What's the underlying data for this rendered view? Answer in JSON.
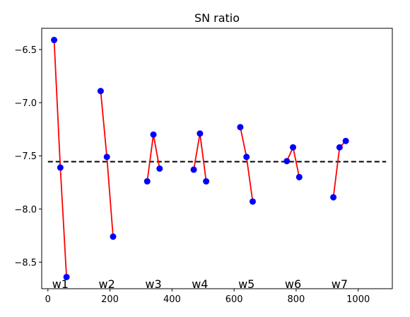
{
  "chart_data": {
    "type": "line",
    "title": "SN ratio",
    "xlabel": "",
    "ylabel": "",
    "xlim": [
      -20,
      1110
    ],
    "ylim": [
      -8.75,
      -6.3
    ],
    "x_ticks": [
      0,
      200,
      400,
      600,
      800,
      1000
    ],
    "y_ticks": [
      -6.5,
      -7.0,
      -7.5,
      -8.0,
      -8.5
    ],
    "y_tick_labels": [
      "−6.5",
      "−7.0",
      "−7.5",
      "−8.0",
      "−8.5"
    ],
    "grid": false,
    "reference_line": {
      "y": -7.555,
      "x_start": 0,
      "x_end": 1090,
      "style": "dashed",
      "color": "#000000"
    },
    "line_color": "#ff0000",
    "marker_color": "#0000ff",
    "groups": [
      {
        "label": "w1",
        "label_x": 40,
        "points": [
          [
            20,
            -6.41
          ],
          [
            40,
            -7.61
          ],
          [
            60,
            -8.64
          ]
        ]
      },
      {
        "label": "w2",
        "label_x": 190,
        "points": [
          [
            170,
            -6.89
          ],
          [
            190,
            -7.51
          ],
          [
            210,
            -8.26
          ]
        ]
      },
      {
        "label": "w3",
        "label_x": 340,
        "points": [
          [
            320,
            -7.74
          ],
          [
            340,
            -7.3
          ],
          [
            360,
            -7.62
          ]
        ]
      },
      {
        "label": "w4",
        "label_x": 490,
        "points": [
          [
            470,
            -7.63
          ],
          [
            490,
            -7.29
          ],
          [
            510,
            -7.74
          ]
        ]
      },
      {
        "label": "w5",
        "label_x": 640,
        "points": [
          [
            620,
            -7.23
          ],
          [
            640,
            -7.51
          ],
          [
            660,
            -7.93
          ]
        ]
      },
      {
        "label": "w6",
        "label_x": 790,
        "points": [
          [
            770,
            -7.55
          ],
          [
            790,
            -7.42
          ],
          [
            810,
            -7.7
          ]
        ]
      },
      {
        "label": "w7",
        "label_x": 940,
        "points": [
          [
            920,
            -7.89
          ],
          [
            940,
            -7.42
          ],
          [
            960,
            -7.36
          ]
        ]
      }
    ]
  }
}
